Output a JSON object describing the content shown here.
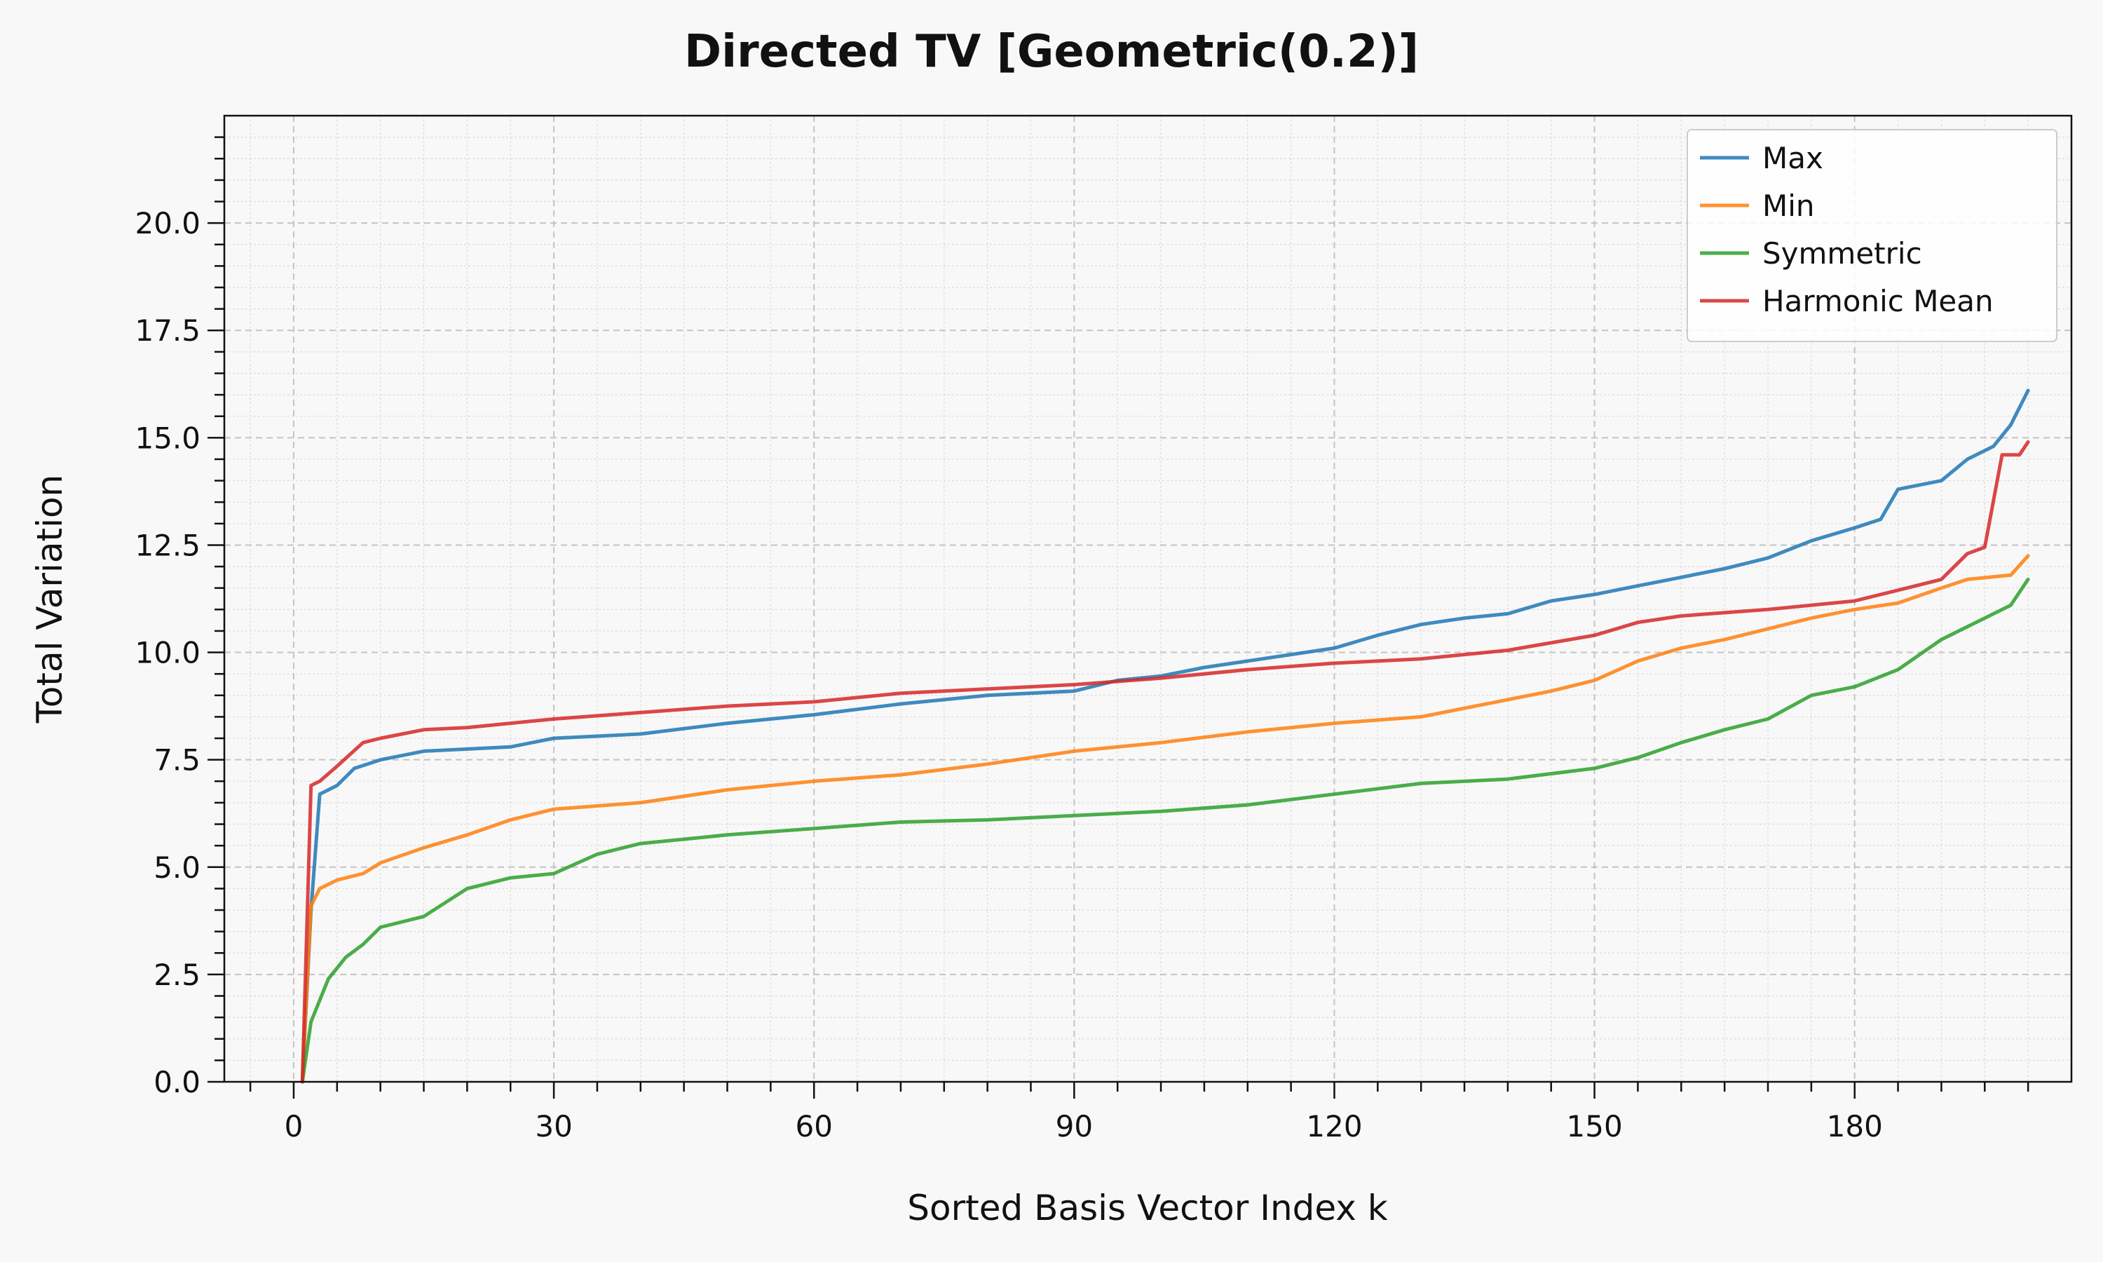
{
  "chart_data": {
    "type": "line",
    "title": "Directed TV [Geometric(0.2)]",
    "xlabel": "Sorted Basis Vector Index k",
    "ylabel": "Total Variation",
    "xlim": [
      -8,
      205
    ],
    "ylim": [
      0,
      22.5
    ],
    "xticks": [
      0,
      30,
      60,
      90,
      120,
      150,
      180
    ],
    "yticks": [
      0.0,
      2.5,
      5.0,
      7.5,
      10.0,
      12.5,
      15.0,
      17.5,
      20.0
    ],
    "ytick_labels": [
      "0.0",
      "2.5",
      "5.0",
      "7.5",
      "10.0",
      "12.5",
      "15.0",
      "17.5",
      "20.0"
    ],
    "grid": true,
    "legend_position": "top-right",
    "series": [
      {
        "name": "Max",
        "color": "#1f77b4",
        "points": [
          [
            1,
            0
          ],
          [
            2,
            4.0
          ],
          [
            3,
            6.7
          ],
          [
            5,
            6.9
          ],
          [
            7,
            7.3
          ],
          [
            10,
            7.5
          ],
          [
            15,
            7.7
          ],
          [
            20,
            7.75
          ],
          [
            25,
            7.8
          ],
          [
            30,
            8.0
          ],
          [
            40,
            8.1
          ],
          [
            50,
            8.35
          ],
          [
            60,
            8.55
          ],
          [
            70,
            8.8
          ],
          [
            80,
            9.0
          ],
          [
            90,
            9.1
          ],
          [
            95,
            9.35
          ],
          [
            100,
            9.45
          ],
          [
            105,
            9.65
          ],
          [
            110,
            9.8
          ],
          [
            115,
            9.95
          ],
          [
            120,
            10.1
          ],
          [
            125,
            10.4
          ],
          [
            130,
            10.65
          ],
          [
            135,
            10.8
          ],
          [
            140,
            10.9
          ],
          [
            145,
            11.2
          ],
          [
            150,
            11.35
          ],
          [
            155,
            11.55
          ],
          [
            160,
            11.75
          ],
          [
            165,
            11.95
          ],
          [
            170,
            12.2
          ],
          [
            175,
            12.6
          ],
          [
            180,
            12.9
          ],
          [
            183,
            13.1
          ],
          [
            185,
            13.8
          ],
          [
            190,
            14.0
          ],
          [
            193,
            14.5
          ],
          [
            196,
            14.8
          ],
          [
            198,
            15.3
          ],
          [
            200,
            16.1
          ]
        ]
      },
      {
        "name": "Min",
        "color": "#ff7f0e",
        "points": [
          [
            1,
            0
          ],
          [
            2,
            4.1
          ],
          [
            3,
            4.5
          ],
          [
            5,
            4.7
          ],
          [
            8,
            4.85
          ],
          [
            10,
            5.1
          ],
          [
            15,
            5.45
          ],
          [
            20,
            5.75
          ],
          [
            25,
            6.1
          ],
          [
            30,
            6.35
          ],
          [
            40,
            6.5
          ],
          [
            50,
            6.8
          ],
          [
            60,
            7.0
          ],
          [
            70,
            7.15
          ],
          [
            80,
            7.4
          ],
          [
            90,
            7.7
          ],
          [
            100,
            7.9
          ],
          [
            110,
            8.15
          ],
          [
            120,
            8.35
          ],
          [
            130,
            8.5
          ],
          [
            140,
            8.9
          ],
          [
            145,
            9.1
          ],
          [
            150,
            9.35
          ],
          [
            155,
            9.8
          ],
          [
            160,
            10.1
          ],
          [
            165,
            10.3
          ],
          [
            170,
            10.55
          ],
          [
            175,
            10.8
          ],
          [
            180,
            11.0
          ],
          [
            185,
            11.15
          ],
          [
            190,
            11.5
          ],
          [
            193,
            11.7
          ],
          [
            198,
            11.8
          ],
          [
            200,
            12.25
          ]
        ]
      },
      {
        "name": "Symmetric",
        "color": "#2ca02c",
        "points": [
          [
            1,
            0
          ],
          [
            2,
            1.4
          ],
          [
            4,
            2.4
          ],
          [
            6,
            2.9
          ],
          [
            8,
            3.2
          ],
          [
            10,
            3.6
          ],
          [
            15,
            3.85
          ],
          [
            20,
            4.5
          ],
          [
            25,
            4.75
          ],
          [
            30,
            4.85
          ],
          [
            35,
            5.3
          ],
          [
            40,
            5.55
          ],
          [
            50,
            5.75
          ],
          [
            60,
            5.9
          ],
          [
            70,
            6.05
          ],
          [
            80,
            6.1
          ],
          [
            90,
            6.2
          ],
          [
            100,
            6.3
          ],
          [
            110,
            6.45
          ],
          [
            120,
            6.7
          ],
          [
            130,
            6.95
          ],
          [
            140,
            7.05
          ],
          [
            150,
            7.3
          ],
          [
            155,
            7.55
          ],
          [
            160,
            7.9
          ],
          [
            165,
            8.2
          ],
          [
            170,
            8.45
          ],
          [
            175,
            9.0
          ],
          [
            180,
            9.2
          ],
          [
            185,
            9.6
          ],
          [
            190,
            10.3
          ],
          [
            195,
            10.8
          ],
          [
            198,
            11.1
          ],
          [
            200,
            11.7
          ]
        ]
      },
      {
        "name": "Harmonic Mean",
        "color": "#d62728",
        "points": [
          [
            1,
            0
          ],
          [
            2,
            6.9
          ],
          [
            3,
            7.0
          ],
          [
            5,
            7.35
          ],
          [
            8,
            7.9
          ],
          [
            10,
            8.0
          ],
          [
            15,
            8.2
          ],
          [
            20,
            8.25
          ],
          [
            30,
            8.45
          ],
          [
            40,
            8.6
          ],
          [
            50,
            8.75
          ],
          [
            60,
            8.85
          ],
          [
            70,
            9.05
          ],
          [
            80,
            9.15
          ],
          [
            90,
            9.25
          ],
          [
            100,
            9.4
          ],
          [
            110,
            9.6
          ],
          [
            120,
            9.75
          ],
          [
            130,
            9.85
          ],
          [
            140,
            10.05
          ],
          [
            150,
            10.4
          ],
          [
            155,
            10.7
          ],
          [
            160,
            10.85
          ],
          [
            170,
            11.0
          ],
          [
            180,
            11.2
          ],
          [
            185,
            11.45
          ],
          [
            190,
            11.7
          ],
          [
            193,
            12.3
          ],
          [
            195,
            12.45
          ],
          [
            197,
            14.6
          ],
          [
            199,
            14.6
          ],
          [
            200,
            14.9
          ]
        ]
      }
    ]
  }
}
